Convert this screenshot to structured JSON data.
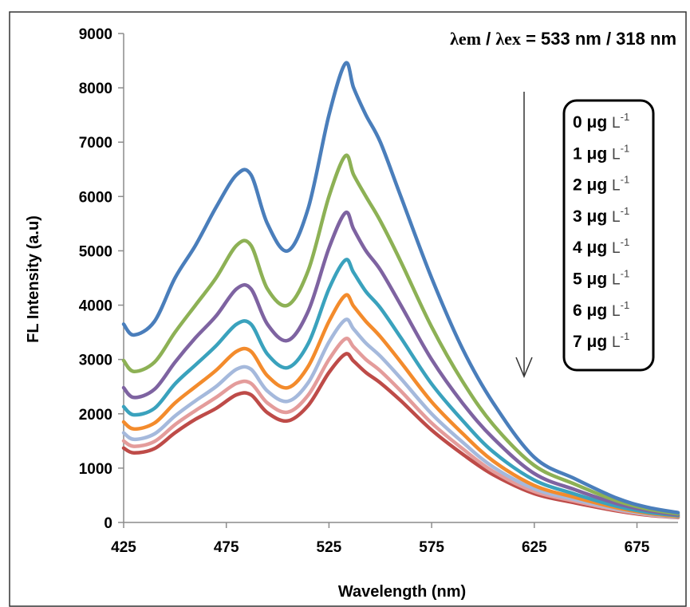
{
  "chart_data": {
    "type": "line",
    "title": "",
    "annotation": {
      "lambda_em": "λem",
      "separator": " / ",
      "lambda_ex": "λex",
      "value_text": " = 533 nm / 318 nm"
    },
    "xlabel": "Wavelength (nm)",
    "ylabel": "FL Intensity (a.u)",
    "xlim": [
      425,
      695
    ],
    "ylim": [
      0,
      9000
    ],
    "xticks": [
      425,
      475,
      525,
      575,
      625,
      675
    ],
    "yticks": [
      0,
      1000,
      2000,
      3000,
      4000,
      5000,
      6000,
      7000,
      8000,
      9000
    ],
    "grid": false,
    "legend_position": "top-right",
    "arrow": "downward arrow indicating decreasing intensity with concentration",
    "x": [
      425,
      430,
      440,
      450,
      460,
      470,
      480,
      487,
      495,
      505,
      515,
      525,
      533,
      537,
      543,
      550,
      560,
      575,
      590,
      605,
      625,
      645,
      665,
      680,
      695
    ],
    "series": [
      {
        "name": "0 μg L-1",
        "label_main": "0 μg",
        "label_unit": "L",
        "label_exp": "-1",
        "color": "#4a7ebb",
        "values": [
          3650,
          3450,
          3700,
          4500,
          5100,
          5800,
          6400,
          6400,
          5500,
          5000,
          5800,
          7500,
          8450,
          8000,
          7500,
          7000,
          6000,
          4500,
          3200,
          2200,
          1200,
          800,
          450,
          280,
          180
        ]
      },
      {
        "name": "1 μg L-1",
        "label_main": "1 μg",
        "label_unit": "L",
        "label_exp": "-1",
        "color": "#8db155",
        "values": [
          2980,
          2780,
          2950,
          3500,
          4000,
          4500,
          5100,
          5100,
          4300,
          4000,
          4650,
          6000,
          6750,
          6400,
          6000,
          5550,
          4800,
          3600,
          2600,
          1800,
          1050,
          700,
          400,
          250,
          160
        ]
      },
      {
        "name": "2 μg L-1",
        "label_main": "2 μg",
        "label_unit": "L",
        "label_exp": "-1",
        "color": "#7e63a1",
        "values": [
          2480,
          2300,
          2450,
          2950,
          3400,
          3800,
          4300,
          4300,
          3650,
          3350,
          3900,
          5050,
          5700,
          5400,
          5000,
          4650,
          4000,
          3000,
          2200,
          1550,
          900,
          600,
          350,
          220,
          140
        ]
      },
      {
        "name": "3 μg L-1",
        "label_main": "3 μg",
        "label_unit": "L",
        "label_exp": "-1",
        "color": "#3aa2bd",
        "values": [
          2130,
          1980,
          2100,
          2550,
          2900,
          3250,
          3650,
          3650,
          3100,
          2850,
          3300,
          4300,
          4830,
          4600,
          4250,
          3950,
          3400,
          2550,
          1880,
          1300,
          780,
          520,
          300,
          190,
          125
        ]
      },
      {
        "name": "4 μg L-1",
        "label_main": "4 μg",
        "label_unit": "L",
        "label_exp": "-1",
        "color": "#f38b2c",
        "values": [
          1850,
          1720,
          1830,
          2200,
          2500,
          2800,
          3150,
          3150,
          2700,
          2480,
          2880,
          3700,
          4180,
          3980,
          3700,
          3420,
          2950,
          2220,
          1640,
          1130,
          680,
          460,
          270,
          170,
          110
        ]
      },
      {
        "name": "5 μg L-1",
        "label_main": "5 μg",
        "label_unit": "L",
        "label_exp": "-1",
        "color": "#a5b9dc",
        "values": [
          1650,
          1530,
          1630,
          1960,
          2240,
          2500,
          2820,
          2820,
          2420,
          2230,
          2580,
          3320,
          3730,
          3560,
          3300,
          3060,
          2650,
          2000,
          1480,
          1020,
          620,
          420,
          250,
          155,
          100
        ]
      },
      {
        "name": "6 μg L-1",
        "label_main": "6 μg",
        "label_unit": "L",
        "label_exp": "-1",
        "color": "#e49c9b",
        "values": [
          1500,
          1400,
          1490,
          1800,
          2060,
          2300,
          2560,
          2560,
          2200,
          2030,
          2350,
          3000,
          3380,
          3230,
          3000,
          2790,
          2420,
          1830,
          1360,
          940,
          570,
          390,
          230,
          145,
          95
        ]
      },
      {
        "name": "7 μg L-1",
        "label_main": "7 μg",
        "label_unit": "L",
        "label_exp": "-1",
        "color": "#be4b48",
        "values": [
          1370,
          1280,
          1360,
          1650,
          1900,
          2100,
          2350,
          2350,
          2020,
          1870,
          2160,
          2760,
          3100,
          2970,
          2760,
          2570,
          2240,
          1700,
          1260,
          880,
          530,
          360,
          215,
          135,
          90
        ]
      }
    ]
  }
}
